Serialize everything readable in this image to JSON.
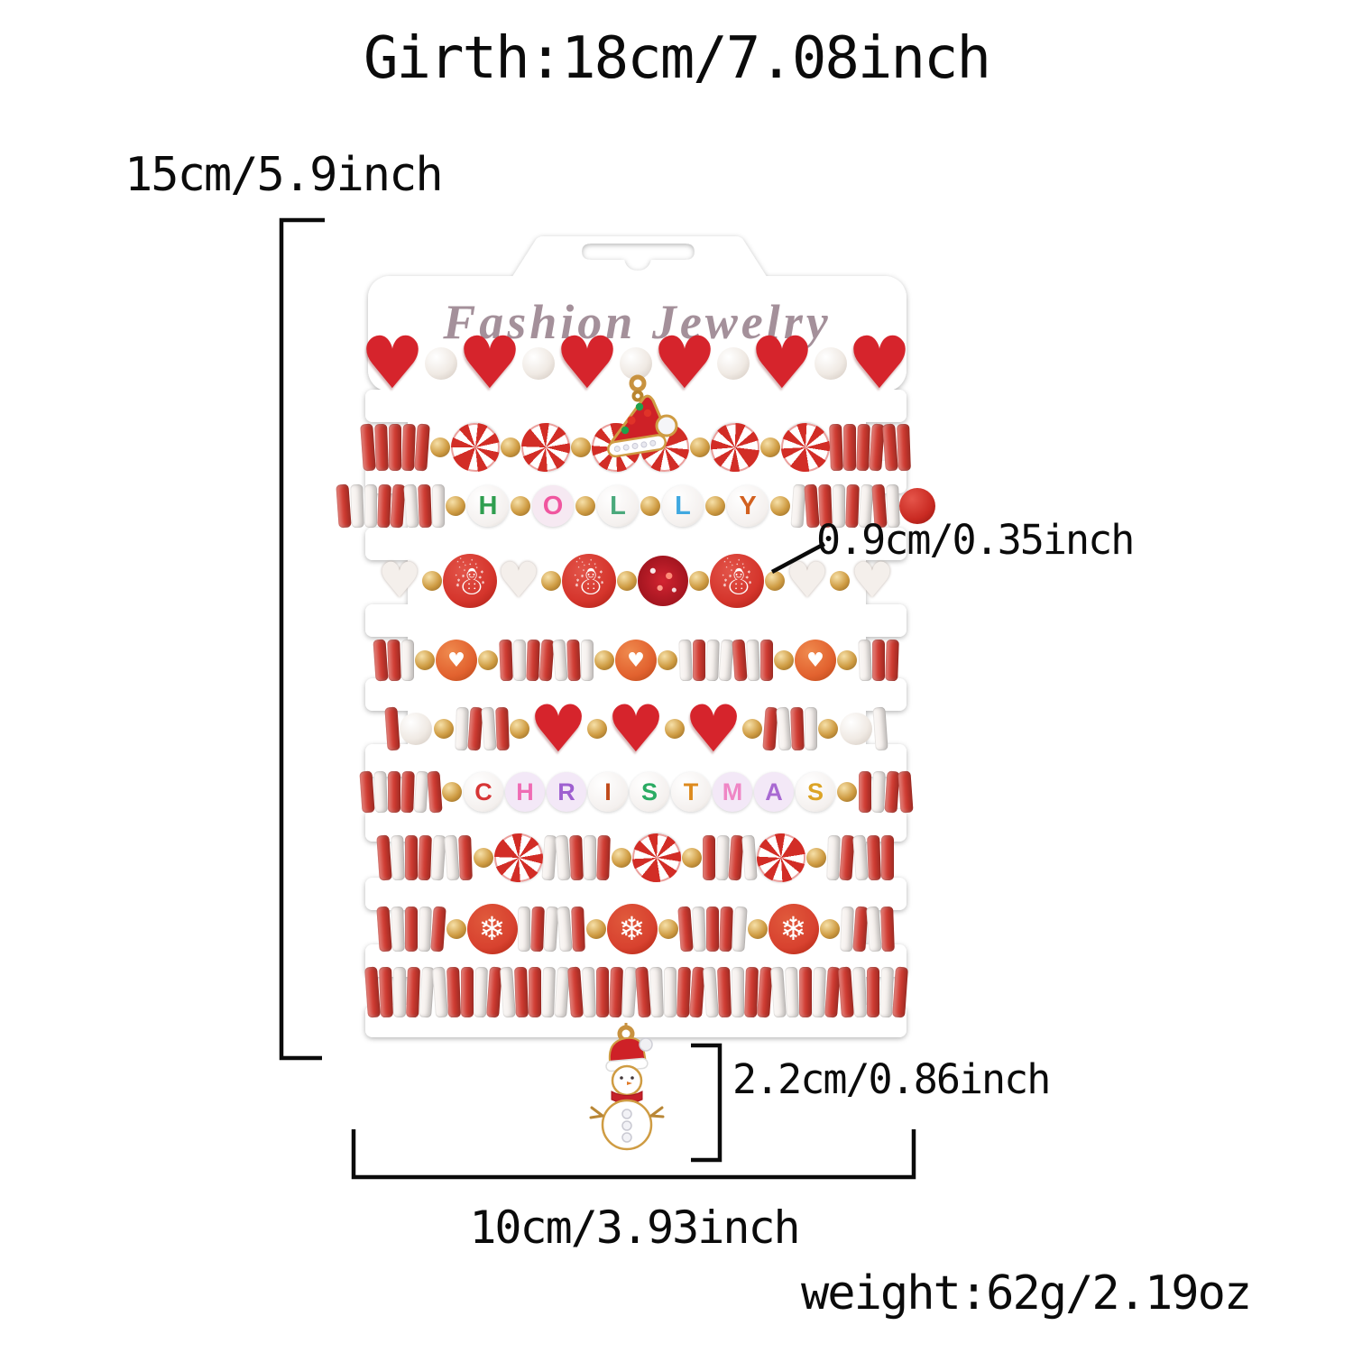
{
  "annotations": {
    "girth": "Girth:18cm/7.08inch",
    "height": "15cm/5.9inch",
    "bead_size": "0.9cm/0.35inch",
    "charm_size": "2.2cm/0.86inch",
    "width": "10cm/3.93inch",
    "weight": "weight:62g/2.19oz"
  },
  "card": {
    "brand": "Fashion Jewelry"
  },
  "colors": {
    "bead_red": "#d13a30",
    "candy_red": "#d22d26",
    "gold": "#cf9c43",
    "pearl": "#f0eae4",
    "orange_bead": "#e2622f",
    "brand_text": "#a4909a",
    "annotation_text": "#0b0b0b"
  },
  "charms": [
    {
      "name": "santa-hat-rhinestone-charm"
    },
    {
      "name": "snowman-enamel-charm"
    }
  ],
  "bracelets": [
    {
      "name": "red-hearts-pearls",
      "beads": [
        "H",
        "p",
        "H",
        "p",
        "H",
        "p",
        "H",
        "p",
        "H",
        "p",
        "H"
      ]
    },
    {
      "name": "peppermint-candies-santa-hat",
      "beads": [
        "r",
        "r",
        "r",
        "r",
        "r",
        "g",
        "c",
        "g",
        "c",
        "g",
        "c",
        "c",
        "g",
        "c",
        "g",
        "c",
        "r",
        "r",
        "r",
        "r",
        "r",
        "r"
      ]
    },
    {
      "name": "holly-letters",
      "word": "HOLLY",
      "beads": [
        "r",
        "w",
        "w",
        "r",
        "r",
        "w",
        "r",
        "w",
        "g",
        {
          "letter": "H",
          "color": "#2f9e4f"
        },
        "g",
        {
          "letter": "O",
          "color": "#f0569f",
          "tint": "#f6e9f2"
        },
        "g",
        {
          "letter": "L",
          "color": "#4aa97c"
        },
        "g",
        {
          "letter": "L",
          "color": "#3fa8e0"
        },
        "g",
        {
          "letter": "Y",
          "color": "#d2601f"
        },
        "g",
        "w",
        "r",
        "r",
        "w",
        "r",
        "w",
        "r",
        "w",
        "R"
      ]
    },
    {
      "name": "snowmen-pearl-hearts",
      "beads": [
        "e",
        "g",
        "s",
        "e",
        "g",
        "s",
        "g",
        "k",
        "g",
        "s",
        "g",
        "e",
        "g",
        "e"
      ]
    },
    {
      "name": "orange-heart-beads",
      "beads": [
        "r",
        "r",
        "w",
        "g",
        "o",
        "g",
        "r",
        "w",
        "r",
        "r",
        "w",
        "r",
        "w",
        "g",
        "o",
        "g",
        "w",
        "r",
        "w",
        "w",
        "r",
        "w",
        "r",
        "g",
        "o",
        "g",
        "w",
        "r",
        "r"
      ]
    },
    {
      "name": "big-red-hearts",
      "beads": [
        "r",
        "p",
        "g",
        "w",
        "r",
        "w",
        "r",
        "g",
        "H",
        "g",
        "H",
        "g",
        "H",
        "g",
        "r",
        "w",
        "r",
        "w",
        "g",
        "p",
        "w"
      ]
    },
    {
      "name": "christmas-letters",
      "word": "CHRISTMAS",
      "beads": [
        "r",
        "w",
        "r",
        "r",
        "w",
        "r",
        "g",
        {
          "letter": "C",
          "color": "#d63535"
        },
        {
          "letter": "H",
          "color": "#ef6cb4",
          "tint": "#f3e8f7"
        },
        {
          "letter": "R",
          "color": "#9e5fd0",
          "tint": "#f3e8f7"
        },
        {
          "letter": "I",
          "color": "#c04a1a"
        },
        {
          "letter": "S",
          "color": "#2bab63"
        },
        {
          "letter": "T",
          "color": "#dd8a1e"
        },
        {
          "letter": "M",
          "color": "#ef86c5",
          "tint": "#f3e8f7"
        },
        {
          "letter": "A",
          "color": "#a869d2",
          "tint": "#f3e8f7"
        },
        {
          "letter": "S",
          "color": "#dca426"
        },
        "g",
        "r",
        "w",
        "r",
        "r"
      ]
    },
    {
      "name": "peppermint-swirls",
      "beads": [
        "r",
        "w",
        "r",
        "r",
        "w",
        "w",
        "r",
        "g",
        "c",
        "w",
        "w",
        "r",
        "w",
        "r",
        "g",
        "c",
        "g",
        "r",
        "w",
        "r",
        "w",
        "c",
        "g",
        "w",
        "r",
        "w",
        "r",
        "r"
      ]
    },
    {
      "name": "snowflakes",
      "beads": [
        "r",
        "w",
        "r",
        "w",
        "r",
        "g",
        "f",
        "w",
        "r",
        "w",
        "w",
        "r",
        "g",
        "f",
        "g",
        "r",
        "w",
        "r",
        "r",
        "w",
        "g",
        "f",
        "g",
        "w",
        "r",
        "w",
        "r"
      ]
    },
    {
      "name": "plain-heishi-snowman-charm",
      "beads": [
        "r",
        "r",
        "w",
        "r",
        "w",
        "w",
        "r",
        "r",
        "w",
        "r",
        "w",
        "r",
        "r",
        "w",
        "w",
        "r",
        "w",
        "r",
        "r",
        "w",
        "r",
        "w",
        "w",
        "r",
        "r",
        "w",
        "r",
        "w",
        "r",
        "r",
        "w",
        "w",
        "r",
        "w",
        "r",
        "r",
        "w",
        "r",
        "w",
        "r"
      ]
    }
  ]
}
